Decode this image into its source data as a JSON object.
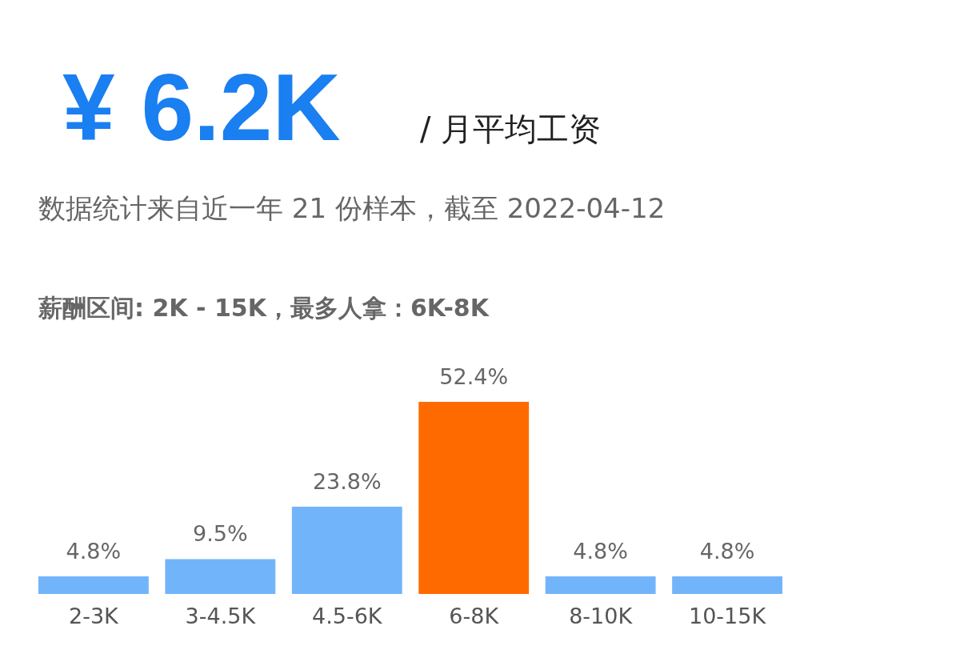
{
  "chart_data": {
    "type": "bar",
    "title": "¥ 6.2K",
    "subtitle": "/ 月平均工资",
    "annotations": [
      "数据统计来自近一年 21 份样本，截至 2022-04-12",
      "薪酬区间: 2K - 15K，最多人拿：6K-8K"
    ],
    "categories": [
      "2-3K",
      "3-4.5K",
      "4.5-6K",
      "6-8K",
      "8-10K",
      "10-15K"
    ],
    "values": [
      4.8,
      9.5,
      23.8,
      52.4,
      4.8,
      4.8
    ],
    "colors": [
      "#72b4fa",
      "#72b4fa",
      "#72b4fa",
      "#ff6a00",
      "#72b4fa",
      "#72b4fa"
    ],
    "value_labels": [
      "4.8%",
      "9.5%",
      "23.8%",
      "52.4%",
      "4.8%",
      "4.8%"
    ]
  }
}
